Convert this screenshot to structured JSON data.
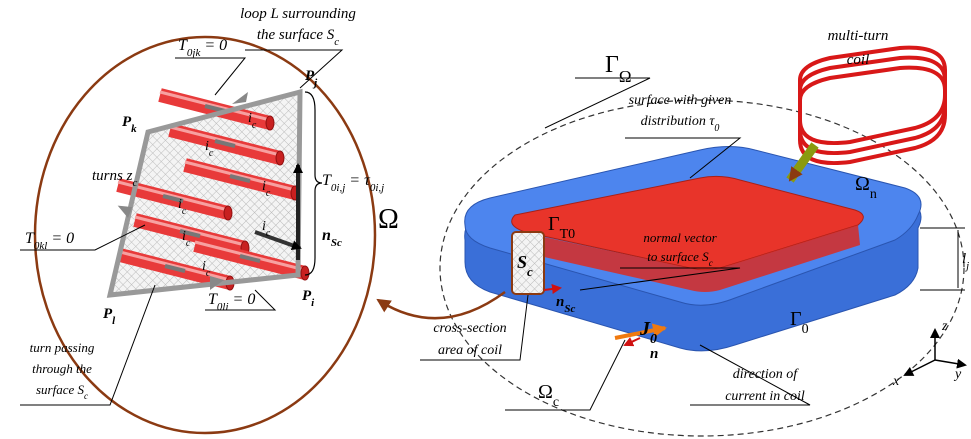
{
  "labels": {
    "loop_callout": [
      [
        "loop L surrounding"
      ],
      [
        "the surface S",
        "c"
      ]
    ],
    "multi_turn_coil": [
      [
        "multi-turn"
      ],
      [
        "coil"
      ]
    ],
    "gamma_omega": [
      [
        "Γ",
        "Ω"
      ]
    ],
    "surface_given": [
      [
        "surface with given"
      ],
      [
        "distribution τ",
        "0"
      ]
    ],
    "t_jk": [
      [
        "T",
        "0jk",
        " = 0"
      ]
    ],
    "p_j": [
      [
        "P",
        "j"
      ]
    ],
    "p_k": [
      [
        "P",
        "k"
      ]
    ],
    "p_i": [
      [
        "P",
        "i"
      ]
    ],
    "p_l": [
      [
        "P",
        "l"
      ]
    ],
    "turns": [
      [
        "turns z",
        "c"
      ]
    ],
    "t_ij": [
      [
        "T",
        "0i,j",
        " = τ",
        "0i,j"
      ]
    ],
    "omega": [
      [
        "Ω"
      ]
    ],
    "omega_n": [
      [
        "Ω",
        "n"
      ]
    ],
    "gamma_t0": [
      [
        "Γ",
        "T0"
      ]
    ],
    "normal_vector": [
      [
        "normal vector"
      ],
      [
        "to surface S",
        "c"
      ]
    ],
    "t_kl": [
      [
        "T",
        "0kl",
        " = 0"
      ]
    ],
    "n_sc_left": [
      [
        "n",
        "Sc"
      ]
    ],
    "l_j": [
      [
        "l",
        "j"
      ]
    ],
    "s_c": [
      [
        "S",
        "c"
      ]
    ],
    "n_sc_right": [
      [
        "n",
        "Sc"
      ]
    ],
    "gamma_0": [
      [
        "Γ",
        "0"
      ]
    ],
    "cross_section": [
      [
        "cross-section"
      ],
      [
        "area of coil"
      ]
    ],
    "j_0": [
      [
        "J",
        "0"
      ]
    ],
    "n": [
      [
        "n"
      ]
    ],
    "t_li": [
      [
        "T",
        "0li",
        " = 0"
      ]
    ],
    "turn_passing": [
      [
        "turn passing"
      ],
      [
        "through the"
      ],
      [
        "surface S",
        "c"
      ]
    ],
    "omega_c": [
      [
        "Ω",
        "c"
      ]
    ],
    "direction": [
      [
        "direction of"
      ],
      [
        "current in coil"
      ]
    ],
    "axis_z": [
      [
        "z"
      ]
    ],
    "axis_x": [
      [
        "x"
      ]
    ],
    "axis_y": [
      [
        "y"
      ]
    ],
    "current_1": [
      [
        "i",
        "c"
      ]
    ],
    "current_2": [
      [
        "i",
        "c"
      ]
    ],
    "current_3": [
      [
        "i",
        "c"
      ]
    ],
    "current_4": [
      [
        "i",
        "c"
      ]
    ],
    "current_5": [
      [
        "i",
        "c"
      ]
    ],
    "current_6": [
      [
        "i",
        "c"
      ]
    ],
    "current_7": [
      [
        "i",
        "c"
      ]
    ]
  }
}
